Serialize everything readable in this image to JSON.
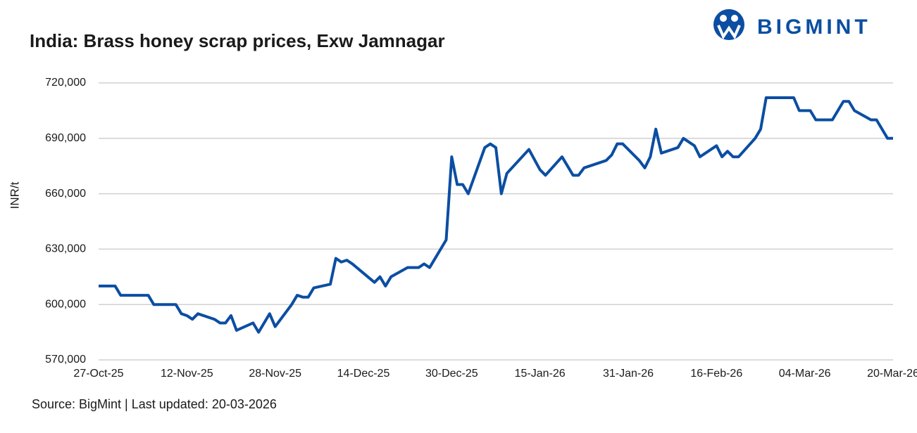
{
  "chart_data": {
    "type": "line",
    "title": "India: Brass honey scrap prices, Exw Jamnagar",
    "logo": "BIGMINT",
    "y_label": "INR/t",
    "source": "Source: BigMint | Last updated: 20-03-2026",
    "xlim": [
      "27-Oct-25",
      "20-Mar-26"
    ],
    "xticks": [
      "27-Oct-25",
      "12-Nov-25",
      "28-Nov-25",
      "14-Dec-25",
      "30-Dec-25",
      "15-Jan-26",
      "31-Jan-26",
      "16-Feb-26",
      "04-Mar-26",
      "20-Mar-26"
    ],
    "ylim": [
      570000,
      720000
    ],
    "yticks": [
      {
        "value": 570000,
        "label": "570,000"
      },
      {
        "value": 600000,
        "label": "600,000"
      },
      {
        "value": 630000,
        "label": "630,000"
      },
      {
        "value": 660000,
        "label": "660,000"
      },
      {
        "value": 690000,
        "label": "690,000"
      },
      {
        "value": 720000,
        "label": "720,000"
      }
    ],
    "grid": true,
    "x": [
      "27-Oct-25",
      "28-Oct-25",
      "30-Oct-25",
      "31-Oct-25",
      "05-Nov-25",
      "06-Nov-25",
      "10-Nov-25",
      "11-Nov-25",
      "12-Nov-25",
      "13-Nov-25",
      "14-Nov-25",
      "17-Nov-25",
      "18-Nov-25",
      "19-Nov-25",
      "20-Nov-25",
      "21-Nov-25",
      "24-Nov-25",
      "25-Nov-25",
      "27-Nov-25",
      "28-Nov-25",
      "01-Dec-25",
      "02-Dec-25",
      "03-Dec-25",
      "04-Dec-25",
      "05-Dec-25",
      "08-Dec-25",
      "09-Dec-25",
      "10-Dec-25",
      "11-Dec-25",
      "12-Dec-25",
      "16-Dec-25",
      "17-Dec-25",
      "18-Dec-25",
      "19-Dec-25",
      "22-Dec-25",
      "24-Dec-25",
      "25-Dec-25",
      "26-Dec-25",
      "29-Dec-25",
      "30-Dec-25",
      "31-Dec-25",
      "01-Jan-26",
      "02-Jan-26",
      "05-Jan-26",
      "06-Jan-26",
      "07-Jan-26",
      "08-Jan-26",
      "09-Jan-26",
      "13-Jan-26",
      "15-Jan-26",
      "16-Jan-26",
      "19-Jan-26",
      "21-Jan-26",
      "22-Jan-26",
      "23-Jan-26",
      "27-Jan-26",
      "28-Jan-26",
      "29-Jan-26",
      "30-Jan-26",
      "02-Feb-26",
      "03-Feb-26",
      "04-Feb-26",
      "05-Feb-26",
      "06-Feb-26",
      "09-Feb-26",
      "10-Feb-26",
      "12-Feb-26",
      "13-Feb-26",
      "16-Feb-26",
      "17-Feb-26",
      "18-Feb-26",
      "19-Feb-26",
      "20-Feb-26",
      "23-Feb-26",
      "24-Feb-26",
      "25-Feb-26",
      "02-Mar-26",
      "03-Mar-26",
      "05-Mar-26",
      "06-Mar-26",
      "09-Mar-26",
      "11-Mar-26",
      "12-Mar-26",
      "13-Mar-26",
      "16-Mar-26",
      "17-Mar-26",
      "19-Mar-26",
      "20-Mar-26"
    ],
    "series": [
      {
        "name": "Brass honey scrap",
        "color": "#0b4ea2",
        "values": [
          610000,
          610000,
          610000,
          605000,
          605000,
          600000,
          600000,
          595000,
          594000,
          592000,
          595000,
          592000,
          590000,
          590000,
          594000,
          586000,
          590000,
          585000,
          595000,
          588000,
          600000,
          605000,
          604000,
          604000,
          609000,
          611000,
          625000,
          623000,
          624000,
          622000,
          612000,
          615000,
          610000,
          615000,
          620000,
          620000,
          622000,
          620000,
          635000,
          680000,
          665000,
          665000,
          660000,
          685000,
          687000,
          685000,
          660000,
          671000,
          684000,
          673000,
          670000,
          680000,
          670000,
          670000,
          674000,
          678000,
          681000,
          687000,
          687000,
          678000,
          674000,
          680000,
          695000,
          682000,
          685000,
          690000,
          686000,
          680000,
          686000,
          680000,
          683000,
          680000,
          680000,
          690000,
          695000,
          712000,
          712000,
          705000,
          705000,
          700000,
          700000,
          710000,
          710000,
          705000,
          700000,
          700000,
          690000,
          690000
        ]
      }
    ]
  }
}
